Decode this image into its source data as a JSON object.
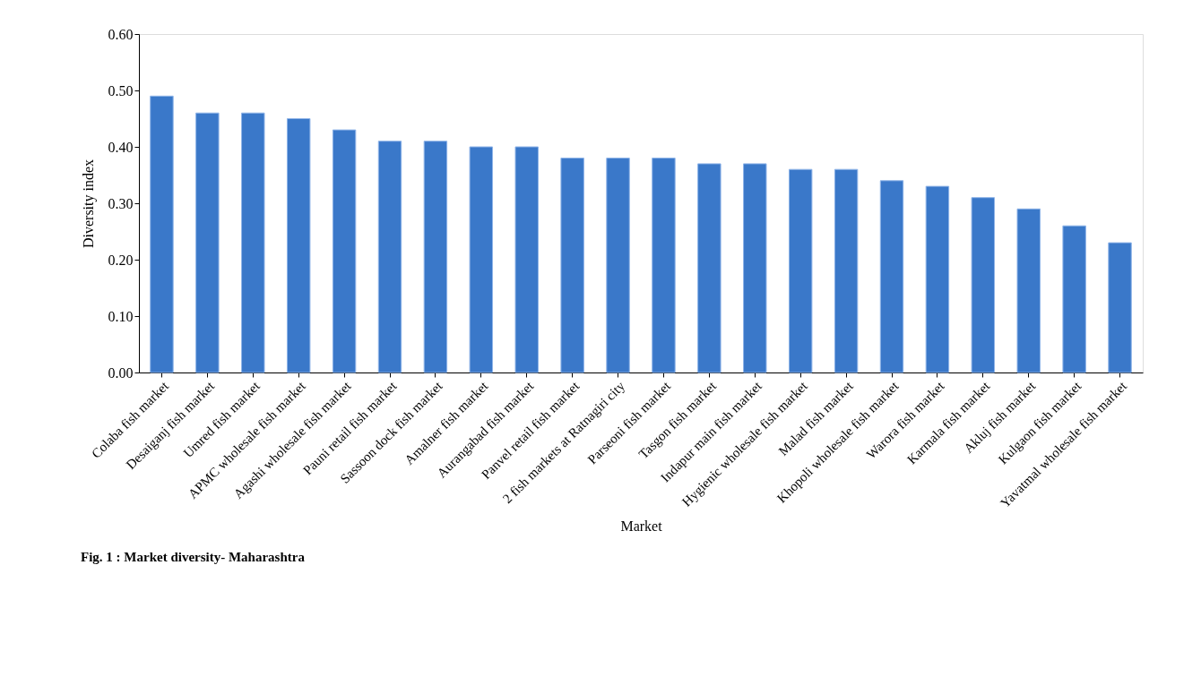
{
  "chart_data": {
    "type": "bar",
    "title": "Fig. 1 : Market diversity- Maharashtra",
    "xlabel": "Market",
    "ylabel": "Diversity index",
    "categories": [
      "Colaba fish market",
      "Desaiganj fish market",
      "Umred fish market",
      "APMC wholesale fish market",
      "Agashi wholesale fish market",
      "Pauni retail fish market",
      "Sassoon dock fish market",
      "Amalner fish market",
      "Aurangabad fish market",
      "Panvel retail fish market",
      "2 fish markets at Ratnagiri city",
      "Parseoni fish market",
      "Tasgon fish market",
      "Indapur main fish market",
      "Hygienic wholesale fish market",
      "Malad fish market",
      "Khopoli wholesale fish market",
      "Warora fish market",
      "Karmala fish market",
      "Akluj fish market",
      "Kulgaon fish market",
      "Yavatmal wholesale fish market"
    ],
    "values": [
      0.49,
      0.46,
      0.46,
      0.45,
      0.43,
      0.41,
      0.41,
      0.4,
      0.4,
      0.38,
      0.38,
      0.38,
      0.37,
      0.37,
      0.36,
      0.36,
      0.34,
      0.33,
      0.31,
      0.29,
      0.26,
      0.23
    ],
    "color": "#3a78c9",
    "ylim": [
      0,
      0.6
    ],
    "yticks": [
      {
        "value": 0,
        "label": "0.00"
      },
      {
        "value": 0.1,
        "label": "0.10"
      },
      {
        "value": 0.2,
        "label": "0.20"
      },
      {
        "value": 0.3,
        "label": "0.30"
      },
      {
        "value": 0.4,
        "label": "0.40"
      },
      {
        "value": 0.5,
        "label": "0.50"
      },
      {
        "value": 0.6,
        "label": "0.60"
      }
    ],
    "grid": false
  }
}
